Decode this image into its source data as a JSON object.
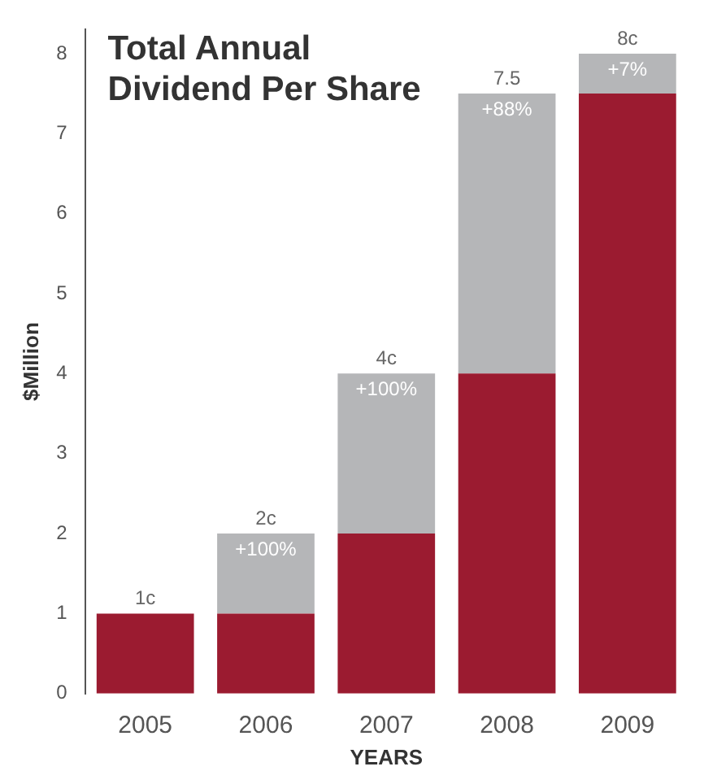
{
  "chart_data": {
    "type": "bar",
    "title": "Total Annual Dividend Per Share",
    "xlabel": "YEARS",
    "ylabel": "$Million",
    "categories": [
      "2005",
      "2006",
      "2007",
      "2008",
      "2009"
    ],
    "stacked": true,
    "series": [
      {
        "color": "#9b1b30",
        "values": [
          1,
          1,
          2,
          4,
          7.5
        ]
      },
      {
        "color": "#b5b6b8",
        "values": [
          0,
          1,
          2,
          3.5,
          0.5
        ]
      }
    ],
    "annotations": [
      {
        "text": "+100%",
        "x": "2006",
        "y": 2
      },
      {
        "text": "+100%",
        "x": "2007",
        "y": 4
      },
      {
        "text": "+88%",
        "x": "2008",
        "y": 7.5
      },
      {
        "text": "+7%",
        "x": "2009",
        "y": 8
      }
    ],
    "totals": [
      "1c",
      "2c",
      "4c",
      "7.5",
      "8c"
    ],
    "ylim": [
      0,
      8.3
    ],
    "yticks": [
      0,
      1,
      2,
      3,
      4,
      5,
      6,
      7,
      8
    ],
    "grid": false,
    "legend": false
  }
}
